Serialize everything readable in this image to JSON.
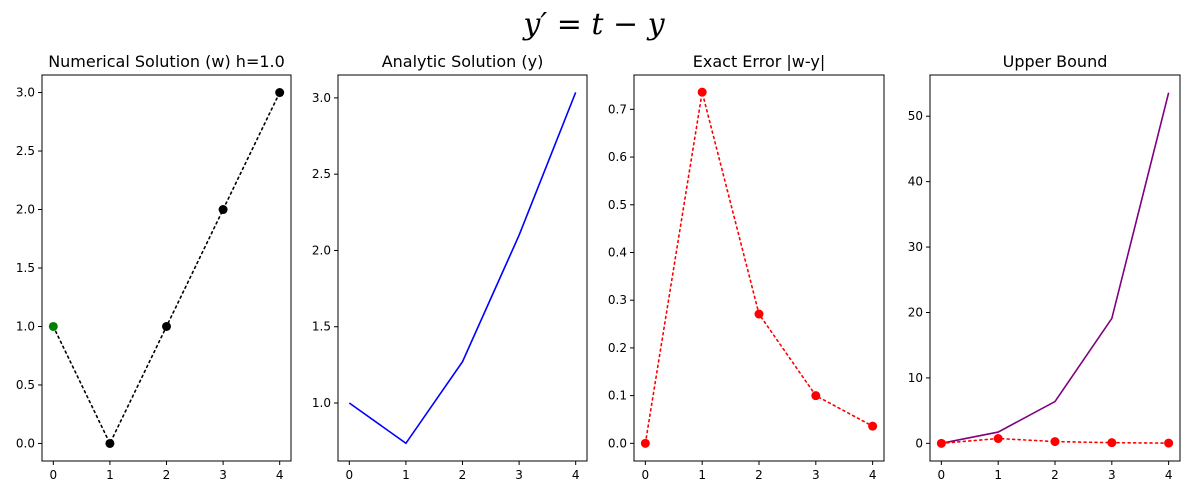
{
  "figure": {
    "suptitle": "y′ = t − y"
  },
  "chart_data": [
    {
      "type": "line",
      "title": "Numerical Solution (w) h=1.0",
      "x": [
        0,
        1,
        2,
        3,
        4
      ],
      "xlim": [
        -0.2,
        4.2
      ],
      "ylim": [
        -0.15,
        3.15
      ],
      "xticks": [
        "0",
        "1",
        "2",
        "3",
        "4"
      ],
      "yticks": [
        "0.0",
        "0.5",
        "1.0",
        "1.5",
        "2.0",
        "2.5",
        "3.0"
      ],
      "series": [
        {
          "values": [
            1.0,
            0.0,
            1.0,
            2.0,
            3.0
          ],
          "color": "#000000",
          "line_style": "dotted",
          "marker": "circle",
          "marker_colors": [
            "#008000",
            "#000000",
            "#000000",
            "#000000",
            "#000000"
          ]
        }
      ]
    },
    {
      "type": "line",
      "title": "Analytic Solution (y)",
      "x": [
        0,
        1,
        2,
        3,
        4
      ],
      "xlim": [
        -0.2,
        4.2
      ],
      "ylim": [
        0.62,
        3.15
      ],
      "xticks": [
        "0",
        "1",
        "2",
        "3",
        "4"
      ],
      "yticks": [
        "1.0",
        "1.5",
        "2.0",
        "2.5",
        "3.0"
      ],
      "series": [
        {
          "values": [
            1.0,
            0.736,
            1.271,
            2.1,
            3.036
          ],
          "color": "#0000ff",
          "line_style": "solid",
          "marker": "none"
        }
      ]
    },
    {
      "type": "line",
      "title": "Exact Error |w-y|",
      "x": [
        0,
        1,
        2,
        3,
        4
      ],
      "xlim": [
        -0.2,
        4.2
      ],
      "ylim": [
        -0.037,
        0.772
      ],
      "xticks": [
        "0",
        "1",
        "2",
        "3",
        "4"
      ],
      "yticks": [
        "0.0",
        "0.1",
        "0.2",
        "0.3",
        "0.4",
        "0.5",
        "0.6",
        "0.7"
      ],
      "series": [
        {
          "values": [
            0.0,
            0.736,
            0.271,
            0.1,
            0.036
          ],
          "color": "#ff0000",
          "line_style": "dotted",
          "marker": "circle"
        }
      ]
    },
    {
      "type": "line",
      "title": "Upper Bound",
      "x": [
        0,
        1,
        2,
        3,
        4
      ],
      "xlim": [
        -0.2,
        4.2
      ],
      "ylim": [
        -2.7,
        56.3
      ],
      "xticks": [
        "0",
        "1",
        "2",
        "3",
        "4"
      ],
      "yticks": [
        "0",
        "10",
        "20",
        "30",
        "40",
        "50"
      ],
      "series": [
        {
          "values": [
            0.0,
            1.72,
            6.39,
            19.09,
            53.6
          ],
          "color": "#800080",
          "line_style": "solid",
          "marker": "none"
        },
        {
          "values": [
            0.0,
            0.736,
            0.271,
            0.1,
            0.036
          ],
          "color": "#ff0000",
          "line_style": "dotted",
          "marker": "circle"
        }
      ]
    }
  ]
}
